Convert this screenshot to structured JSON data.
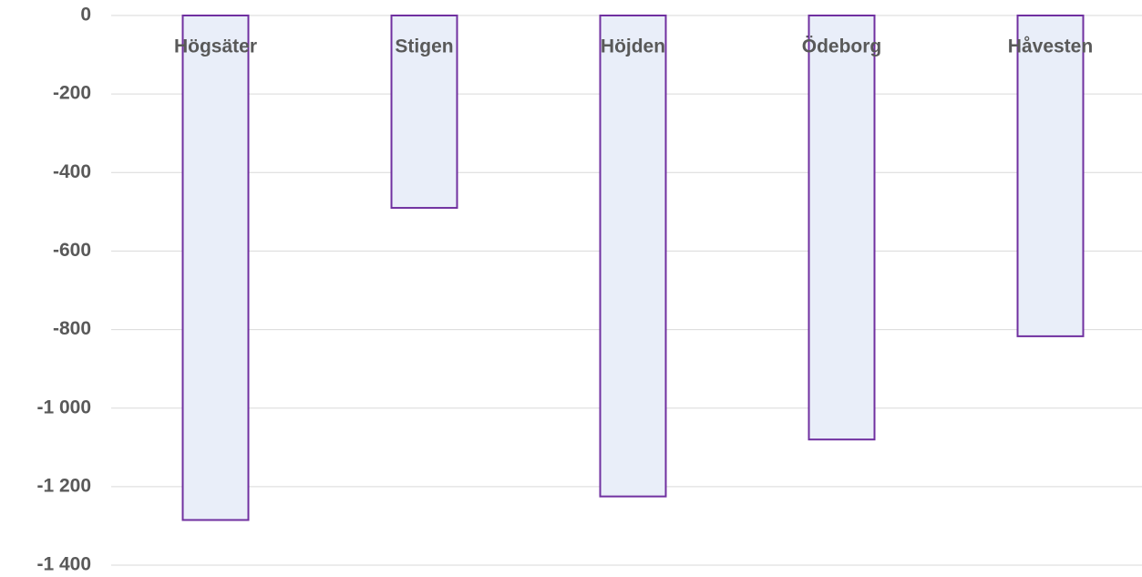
{
  "chart_data": {
    "type": "bar",
    "categories": [
      "Högsäter",
      "Stigen",
      "Höjden",
      "Ödeborg",
      "Håvesten"
    ],
    "values": [
      -1285,
      -490,
      -1225,
      -1080,
      -817
    ],
    "color": "#e9eef9",
    "edge_color": "#7030a0",
    "ylim": [
      -1400,
      0
    ],
    "yticks": [
      0,
      -200,
      -400,
      -600,
      -800,
      {
        "value": -1000,
        "label": "-1 000"
      },
      {
        "value": -1200,
        "label": "-1 200"
      },
      {
        "value": -1400,
        "label": "-1 400"
      }
    ],
    "grid": true
  }
}
